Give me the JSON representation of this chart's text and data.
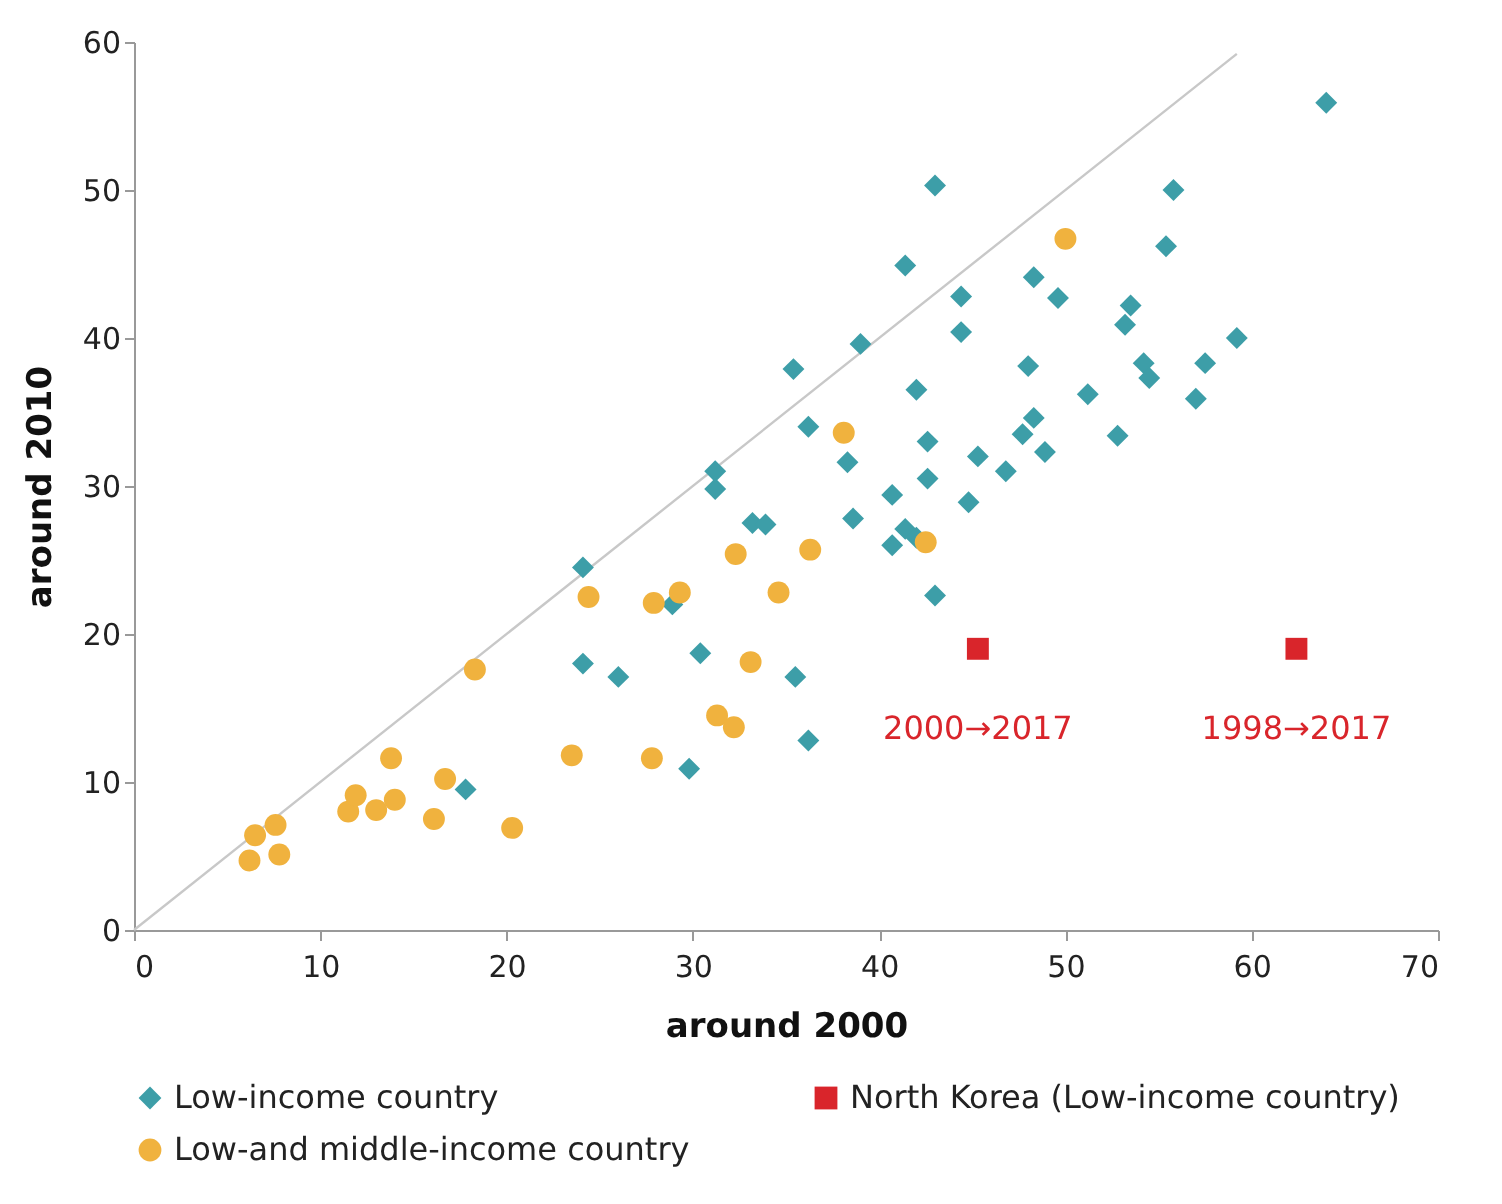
{
  "chart_data": {
    "type": "scatter",
    "xlabel": "around 2000",
    "ylabel": "around 2010",
    "xlim": [
      0,
      70
    ],
    "xticks": [
      0,
      10,
      20,
      30,
      40,
      50,
      60,
      70
    ],
    "ylim": [
      0,
      60
    ],
    "yticks": [
      0,
      10,
      20,
      30,
      40,
      50,
      60
    ],
    "grid": false,
    "legend": "bottom",
    "series": [
      {
        "name": "Low-income country",
        "color": "#3d9ea8",
        "marker": "diamond",
        "x": [
          17.8,
          24.1,
          24.1,
          26.0,
          28.9,
          29.8,
          30.4,
          31.2,
          31.2,
          33.2,
          33.9,
          35.4,
          35.5,
          36.2,
          36.2,
          38.3,
          38.6,
          39.0,
          40.7,
          40.7,
          41.4,
          41.4,
          42.0,
          42.0,
          42.6,
          42.6,
          43.0,
          43.0,
          44.4,
          44.4,
          44.8,
          45.3,
          46.8,
          47.7,
          48.0,
          48.3,
          48.3,
          48.9,
          49.6,
          51.2,
          52.8,
          53.2,
          53.5,
          54.2,
          54.5,
          55.4,
          55.8,
          57.0,
          57.5,
          59.2,
          64.0
        ],
        "values": [
          9.5,
          24.5,
          18.0,
          17.1,
          22.0,
          10.9,
          18.7,
          31.0,
          29.8,
          27.5,
          27.4,
          37.9,
          17.1,
          34.0,
          12.8,
          31.6,
          27.8,
          39.6,
          29.4,
          26.0,
          44.9,
          27.1,
          26.5,
          36.5,
          33.0,
          30.5,
          50.3,
          22.6,
          42.8,
          40.4,
          28.9,
          32.0,
          31.0,
          33.5,
          38.1,
          44.1,
          34.6,
          32.3,
          42.7,
          36.2,
          33.4,
          40.9,
          42.2,
          38.3,
          37.3,
          46.2,
          50.0,
          35.9,
          38.3,
          40.0,
          55.9
        ]
      },
      {
        "name": "North Korea (Low-income country)",
        "color": "#d9252b",
        "marker": "square",
        "x": [
          45.3,
          62.4
        ],
        "values": [
          19.0,
          19.0
        ]
      },
      {
        "name": "Low-and middle-income country",
        "color": "#f0b23e",
        "marker": "circle",
        "x": [
          6.2,
          6.5,
          7.6,
          7.8,
          11.5,
          11.9,
          13.0,
          13.8,
          14.0,
          16.1,
          16.7,
          18.3,
          20.3,
          23.5,
          24.4,
          27.8,
          27.9,
          29.3,
          31.3,
          32.2,
          32.3,
          33.1,
          34.6,
          36.3,
          38.1,
          42.5,
          50.0
        ],
        "values": [
          4.7,
          6.4,
          7.1,
          5.1,
          8.0,
          9.1,
          8.1,
          11.6,
          8.8,
          7.5,
          10.2,
          17.6,
          6.9,
          11.8,
          22.5,
          11.6,
          22.1,
          22.8,
          14.5,
          13.7,
          25.4,
          18.1,
          22.8,
          25.7,
          33.6,
          26.2,
          46.7
        ]
      },
      {
        "type": "line",
        "color": "#c8c8c8",
        "line_style": "solid",
        "x": [
          0,
          59.2
        ],
        "values": [
          0,
          59.2
        ]
      }
    ],
    "annotations": [
      {
        "text": "2000→2017",
        "x": 45.3,
        "y": 19.0
      },
      {
        "text": "1998→2017",
        "x": 62.4,
        "y": 19.0
      }
    ]
  }
}
